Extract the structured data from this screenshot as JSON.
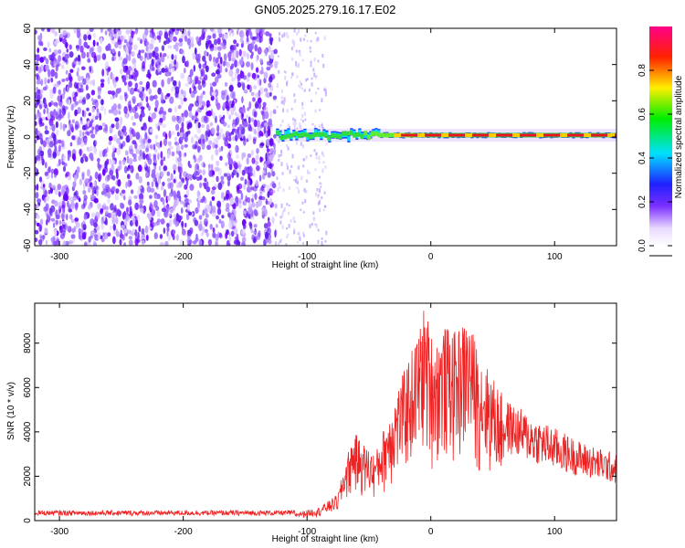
{
  "figure": {
    "title": "GN05.2025.279.16.17.E02"
  },
  "chart_data": [
    {
      "type": "heatmap",
      "title": "GN05.2025.279.16.17.E02",
      "xlabel": "Height of straight line (km)",
      "ylabel": "Frequency (Hz)",
      "xlim": [
        -320,
        150
      ],
      "ylim": [
        -60,
        60
      ],
      "xticks": [
        -300,
        -200,
        -100,
        0,
        100
      ],
      "yticks": [
        -60,
        -40,
        -20,
        0,
        20,
        40,
        60
      ],
      "colorbar": {
        "label": "Normalized spectral amplitude",
        "range": [
          0,
          1
        ],
        "ticks": [
          0.0,
          0.2,
          0.4,
          0.6,
          0.8
        ]
      },
      "features": {
        "noise_region_x": [
          -320,
          -125
        ],
        "sparse_noise_region_x": [
          -125,
          -85
        ],
        "signal_line_start_x": -125,
        "signal_line_frequency_hz": 1
      }
    },
    {
      "type": "line",
      "xlabel": "Height of straight line (km)",
      "ylabel": "SNR (10 * v/v)",
      "xlim": [
        -320,
        150
      ],
      "ylim": [
        0,
        9800
      ],
      "xticks": [
        -300,
        -200,
        -100,
        0,
        100
      ],
      "yticks": [
        0,
        2000,
        4000,
        6000,
        8000
      ],
      "series": [
        {
          "name": "SNR",
          "color": "#ee2222",
          "envelope": {
            "x": [
              -320,
              -200,
              -110,
              -90,
              -75,
              -70,
              -62,
              -55,
              -45,
              -30,
              -20,
              -10,
              -5,
              0,
              5,
              10,
              20,
              30,
              40,
              50,
              60,
              80,
              100,
              120,
              150
            ],
            "y": [
              300,
              300,
              350,
              600,
              1200,
              2500,
              4000,
              3500,
              3000,
              5500,
              7000,
              8500,
              9800,
              8500,
              8200,
              8800,
              8500,
              9200,
              7500,
              6500,
              5500,
              4800,
              4200,
              3600,
              3000
            ]
          }
        }
      ]
    }
  ]
}
